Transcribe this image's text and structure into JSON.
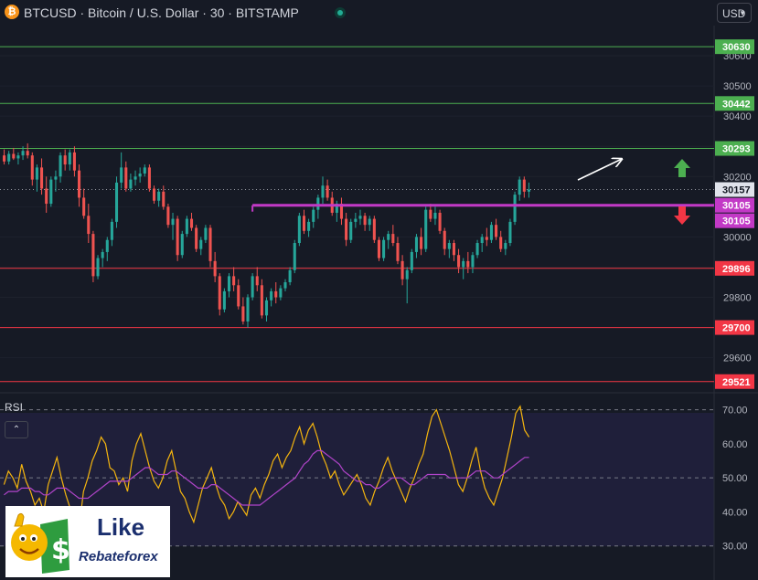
{
  "header": {
    "coin_icon": "bitcoin-icon",
    "symbol_title": "BTCUSD · Bitcoin / U.S. Dollar · 30 · BITSTAMP",
    "currency_button": "USD",
    "market_status": "open"
  },
  "rsi_panel": {
    "label": "RSI",
    "collapse_icon": "chevron-up-icon"
  },
  "logo": {
    "name": "Like Rebateforex",
    "line1": "Like",
    "line2": "Rebateforex"
  },
  "colors": {
    "background": "#161a25",
    "up_candle": "#26a69a",
    "down_candle": "#ef5350",
    "resistance_line": "#4caf50",
    "support_line": "#f23645",
    "pivot_line": "#c239c6",
    "rsi_line": "#f5b50e",
    "rsi_ma_line": "#b044c9"
  },
  "chart_data": [
    {
      "type": "candlestick",
      "symbol": "BTCUSD",
      "interval": "30",
      "exchange": "BITSTAMP",
      "ylim": [
        29490,
        30700
      ],
      "y_ticks": [
        29600,
        29700,
        29800,
        29900,
        30000,
        30100,
        30200,
        30300,
        30400,
        30500,
        30600
      ],
      "price_levels": [
        {
          "value": 30630,
          "label": "30630",
          "role": "resistance",
          "color": "#4caf50"
        },
        {
          "value": 30442,
          "label": "30442",
          "role": "resistance",
          "color": "#4caf50"
        },
        {
          "value": 30293,
          "label": "30293",
          "role": "resistance",
          "color": "#4caf50"
        },
        {
          "value": 30157,
          "label": "30157",
          "role": "last_price",
          "color": "#e0e0e0"
        },
        {
          "value": 30105,
          "label": "30105",
          "role": "pivot",
          "color": "#c239c6"
        },
        {
          "value": 30105,
          "label": "30105",
          "role": "pivot",
          "color": "#c239c6"
        },
        {
          "value": 29896,
          "label": "29896",
          "role": "support",
          "color": "#f23645"
        },
        {
          "value": 29700,
          "label": "29700",
          "role": "support",
          "color": "#f23645"
        },
        {
          "value": 29521,
          "label": "29521",
          "role": "support",
          "color": "#f23645"
        }
      ],
      "pivot_line": {
        "value": 30105,
        "start_bar": 53
      },
      "annotations": [
        "arrow-up-icon",
        "arrow-down-icon",
        "trend-arrow"
      ],
      "ohlc": [
        [
          30270,
          30290,
          30240,
          30250
        ],
        [
          30250,
          30285,
          30240,
          30275
        ],
        [
          30275,
          30295,
          30255,
          30260
        ],
        [
          30260,
          30280,
          30240,
          30270
        ],
        [
          30270,
          30300,
          30255,
          30285
        ],
        [
          30285,
          30310,
          30260,
          30270
        ],
        [
          30270,
          30280,
          30170,
          30190
        ],
        [
          30190,
          30240,
          30150,
          30230
        ],
        [
          30230,
          30260,
          30140,
          30160
        ],
        [
          30160,
          30200,
          30080,
          30110
        ],
        [
          30110,
          30200,
          30100,
          30190
        ],
        [
          30190,
          30220,
          30150,
          30200
        ],
        [
          30200,
          30280,
          30180,
          30270
        ],
        [
          30270,
          30290,
          30220,
          30240
        ],
        [
          30240,
          30290,
          30220,
          30280
        ],
        [
          30280,
          30300,
          30200,
          30220
        ],
        [
          30220,
          30240,
          30100,
          30130
        ],
        [
          30130,
          30160,
          30060,
          30070
        ],
        [
          30070,
          30110,
          29980,
          30010
        ],
        [
          30010,
          30020,
          29850,
          29870
        ],
        [
          29870,
          29940,
          29860,
          29930
        ],
        [
          29930,
          29960,
          29900,
          29950
        ],
        [
          29950,
          30000,
          29920,
          29990
        ],
        [
          29990,
          30060,
          29970,
          30050
        ],
        [
          30050,
          30200,
          30030,
          30180
        ],
        [
          30180,
          30280,
          30160,
          30230
        ],
        [
          30230,
          30250,
          30150,
          30160
        ],
        [
          30160,
          30210,
          30150,
          30190
        ],
        [
          30190,
          30220,
          30170,
          30200
        ],
        [
          30200,
          30230,
          30180,
          30210
        ],
        [
          30210,
          30240,
          30200,
          30230
        ],
        [
          30230,
          30240,
          30150,
          30160
        ],
        [
          30160,
          30170,
          30110,
          30120
        ],
        [
          30120,
          30160,
          30100,
          30150
        ],
        [
          30150,
          30170,
          30090,
          30100
        ],
        [
          30100,
          30110,
          30030,
          30040
        ],
        [
          30040,
          30080,
          29990,
          30060
        ],
        [
          30060,
          30070,
          29920,
          29940
        ],
        [
          29940,
          30020,
          29930,
          30010
        ],
        [
          30010,
          30070,
          30000,
          30060
        ],
        [
          30060,
          30080,
          30020,
          30030
        ],
        [
          30030,
          30040,
          29950,
          29960
        ],
        [
          29960,
          30000,
          29940,
          29990
        ],
        [
          29990,
          30040,
          29980,
          30030
        ],
        [
          30030,
          30040,
          29900,
          29920
        ],
        [
          29920,
          29950,
          29850,
          29870
        ],
        [
          29870,
          29880,
          29740,
          29760
        ],
        [
          29760,
          29830,
          29750,
          29820
        ],
        [
          29820,
          29880,
          29800,
          29870
        ],
        [
          29870,
          29900,
          29820,
          29840
        ],
        [
          29840,
          29860,
          29760,
          29770
        ],
        [
          29770,
          29800,
          29710,
          29720
        ],
        [
          29720,
          29810,
          29700,
          29800
        ],
        [
          29800,
          29880,
          29790,
          29870
        ],
        [
          29870,
          29900,
          29820,
          29840
        ],
        [
          29840,
          29860,
          29730,
          29740
        ],
        [
          29740,
          29800,
          29720,
          29790
        ],
        [
          29790,
          29830,
          29770,
          29820
        ],
        [
          29820,
          29850,
          29780,
          29800
        ],
        [
          29800,
          29840,
          29790,
          29830
        ],
        [
          29830,
          29860,
          29820,
          29850
        ],
        [
          29850,
          29900,
          29840,
          29890
        ],
        [
          29890,
          29990,
          29880,
          29980
        ],
        [
          29980,
          30080,
          29970,
          30070
        ],
        [
          30070,
          30090,
          30010,
          30020
        ],
        [
          30020,
          30060,
          30000,
          30050
        ],
        [
          30050,
          30100,
          30030,
          30090
        ],
        [
          30090,
          30140,
          30060,
          30130
        ],
        [
          30130,
          30200,
          30110,
          30170
        ],
        [
          30170,
          30190,
          30120,
          30130
        ],
        [
          30130,
          30150,
          30070,
          30080
        ],
        [
          30080,
          30120,
          30050,
          30110
        ],
        [
          30110,
          30130,
          30040,
          30060
        ],
        [
          30060,
          30080,
          29970,
          29990
        ],
        [
          29990,
          30060,
          29980,
          30050
        ],
        [
          30050,
          30080,
          30030,
          30060
        ],
        [
          30060,
          30090,
          30040,
          30070
        ],
        [
          30070,
          30080,
          30020,
          30040
        ],
        [
          30040,
          30070,
          30020,
          30060
        ],
        [
          30060,
          30070,
          29980,
          29990
        ],
        [
          29990,
          30000,
          29920,
          29930
        ],
        [
          29930,
          30000,
          29920,
          29990
        ],
        [
          29990,
          30020,
          29960,
          30010
        ],
        [
          30010,
          30040,
          29970,
          29980
        ],
        [
          29980,
          30000,
          29910,
          29920
        ],
        [
          29920,
          29940,
          29840,
          29860
        ],
        [
          29860,
          29900,
          29780,
          29890
        ],
        [
          29890,
          29960,
          29880,
          29950
        ],
        [
          29950,
          30010,
          29930,
          30000
        ],
        [
          30000,
          30030,
          29940,
          29960
        ],
        [
          29960,
          30100,
          29950,
          30090
        ],
        [
          30090,
          30110,
          30050,
          30060
        ],
        [
          30060,
          30100,
          30040,
          30080
        ],
        [
          30080,
          30090,
          30010,
          30020
        ],
        [
          30020,
          30030,
          29940,
          29960
        ],
        [
          29960,
          29990,
          29930,
          29980
        ],
        [
          29980,
          29990,
          29920,
          29940
        ],
        [
          29940,
          29960,
          29880,
          29900
        ],
        [
          29900,
          29930,
          29860,
          29920
        ],
        [
          29920,
          29950,
          29880,
          29900
        ],
        [
          29900,
          29950,
          29880,
          29940
        ],
        [
          29940,
          29990,
          29930,
          29980
        ],
        [
          29980,
          30010,
          29950,
          30000
        ],
        [
          30000,
          30030,
          29970,
          29990
        ],
        [
          29990,
          30050,
          29980,
          30040
        ],
        [
          30040,
          30060,
          29990,
          30000
        ],
        [
          30000,
          30020,
          29950,
          29960
        ],
        [
          29960,
          29990,
          29940,
          29980
        ],
        [
          29980,
          30060,
          29970,
          30050
        ],
        [
          30050,
          30150,
          30040,
          30140
        ],
        [
          30140,
          30200,
          30120,
          30190
        ],
        [
          30190,
          30200,
          30130,
          30150
        ],
        [
          30150,
          30180,
          30130,
          30157
        ]
      ]
    },
    {
      "type": "line",
      "title": "RSI",
      "ylim": [
        20,
        75
      ],
      "y_ticks": [
        30,
        40,
        50,
        60,
        70
      ],
      "bands": [
        30,
        50,
        70
      ],
      "series": [
        {
          "values": [
            48,
            52,
            50,
            47,
            54,
            49,
            46,
            42,
            44,
            40,
            48,
            52,
            56,
            50,
            45,
            41,
            38,
            35,
            46,
            50,
            55,
            58,
            62,
            60,
            53,
            52,
            48,
            50,
            46,
            55,
            60,
            63,
            58,
            53,
            49,
            47,
            50,
            55,
            58,
            52,
            46,
            44,
            40,
            37,
            42,
            47,
            50,
            53,
            48,
            44,
            42,
            38,
            40,
            43,
            41,
            39,
            45,
            47,
            44,
            48,
            51,
            55,
            57,
            53,
            56,
            58,
            62,
            65,
            60,
            64,
            66,
            62,
            57,
            54,
            50,
            52,
            48,
            45,
            47,
            49,
            51,
            48,
            44,
            42,
            46,
            49,
            53,
            56,
            52,
            49,
            46,
            43,
            47,
            50,
            54,
            57,
            63,
            68,
            70,
            66,
            62,
            58,
            53,
            48,
            46,
            50,
            55,
            59,
            52,
            47,
            44,
            42,
            46,
            50,
            56,
            62,
            69,
            71,
            64,
            62
          ]
        },
        {
          "values": [
            45,
            46,
            46,
            46,
            47,
            47,
            47,
            46,
            46,
            45,
            45,
            46,
            47,
            47,
            47,
            46,
            45,
            44,
            44,
            44,
            45,
            46,
            47,
            48,
            49,
            49,
            49,
            49,
            49,
            50,
            51,
            52,
            53,
            53,
            52,
            51,
            51,
            51,
            52,
            52,
            51,
            50,
            49,
            48,
            47,
            47,
            47,
            48,
            48,
            47,
            46,
            45,
            44,
            43,
            42,
            42,
            42,
            42,
            42,
            43,
            44,
            45,
            46,
            47,
            48,
            49,
            50,
            52,
            54,
            55,
            57,
            58,
            58,
            57,
            56,
            55,
            54,
            52,
            51,
            50,
            49,
            49,
            48,
            48,
            47,
            47,
            48,
            49,
            50,
            50,
            50,
            49,
            48,
            48,
            49,
            50,
            51,
            51,
            51,
            51,
            51,
            50,
            50,
            50,
            50,
            50,
            51,
            52,
            52,
            52,
            51,
            50,
            50,
            51,
            52,
            53,
            54,
            55,
            56,
            56
          ]
        }
      ]
    }
  ]
}
